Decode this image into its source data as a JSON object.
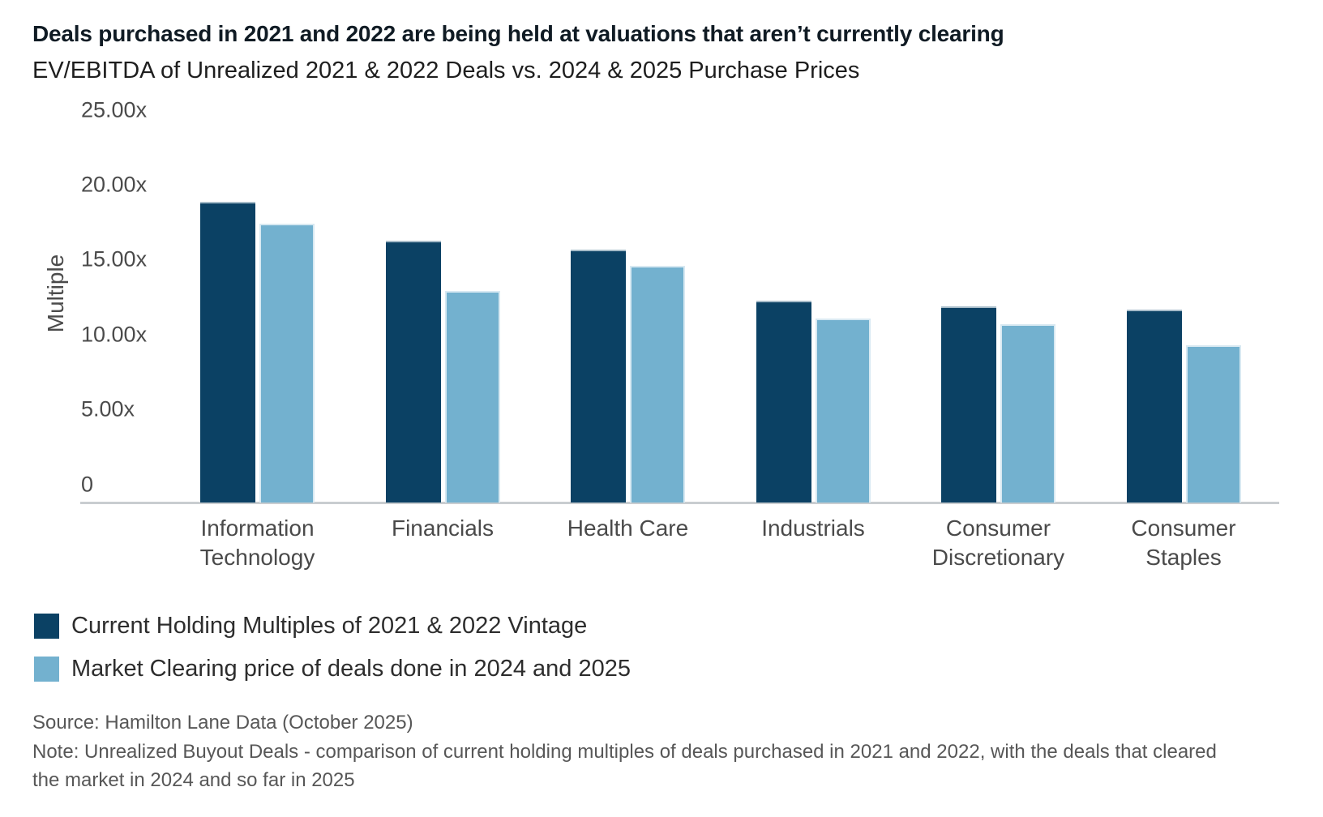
{
  "chart_data": {
    "type": "bar",
    "title": "Deals purchased in 2021 and 2022 are being held at valuations that aren’t currently clearing",
    "subtitle": "EV/EBITDA of Unrealized 2021 & 2022 Deals vs. 2024 & 2025 Purchase Prices",
    "ylabel": "Multiple",
    "ylim": [
      0,
      25
    ],
    "grid": false,
    "legend_position": "bottom-left",
    "yticks": [
      {
        "value": 25,
        "label": "25.00x"
      },
      {
        "value": 20,
        "label": "20.00x"
      },
      {
        "value": 15,
        "label": "15.00x"
      },
      {
        "value": 10,
        "label": "10.00x"
      },
      {
        "value": 5,
        "label": "5.00x"
      },
      {
        "value": 0,
        "label": "0"
      }
    ],
    "categories": [
      "Information Technology",
      "Financials",
      "Health Care",
      "Industrials",
      "Consumer Discretionary",
      "Consumer Staples"
    ],
    "category_label_lines": [
      [
        "Information",
        "Technology"
      ],
      [
        "Financials"
      ],
      [
        "Health Care"
      ],
      [
        "Industrials"
      ],
      [
        "Consumer",
        "Discretionary"
      ],
      [
        "Consumer",
        "Staples"
      ]
    ],
    "series": [
      {
        "name": "Current Holding Multiples of 2021 & 2022 Vintage",
        "color": "#0b4164",
        "values": [
          20.1,
          17.5,
          16.9,
          13.5,
          13.1,
          12.9
        ]
      },
      {
        "name": "Market Clearing price of deals done in 2024 and 2025",
        "color": "#73b1cf",
        "values": [
          18.6,
          14.1,
          15.8,
          12.3,
          11.9,
          10.5
        ]
      }
    ]
  },
  "footer": {
    "source": "Source: Hamilton Lane Data (October 2025)",
    "note": "Note: Unrealized Buyout Deals - comparison of current holding multiples of deals purchased in 2021 and 2022, with the deals that cleared the market in 2024 and so far in 2025"
  }
}
